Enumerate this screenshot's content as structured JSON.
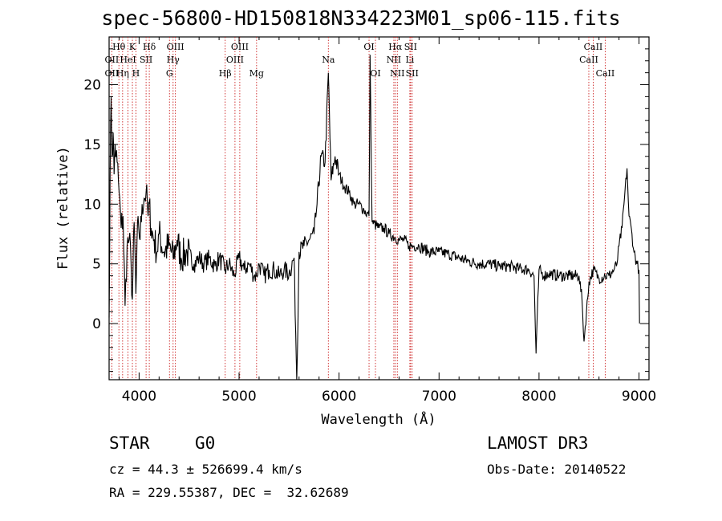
{
  "title": "spec-56800-HD150818N334223M01_sp06-115.fits",
  "info": {
    "class_label": "STAR",
    "subclass_label": "G0",
    "survey": "LAMOST DR3",
    "cz": "cz = 44.3 ± 526699.4 km/s",
    "obs_date": "Obs-Date: 20140522",
    "radec": "RA = 229.55387, DEC =  32.62689"
  },
  "chart_data": {
    "type": "line",
    "title": "spec-56800-HD150818N334223M01_sp06-115.fits",
    "xlabel": "Wavelength (Å)",
    "ylabel": "Flux (relative)",
    "xlim": [
      3700,
      9100
    ],
    "ylim": [
      -4.7,
      24
    ],
    "xticks": [
      4000,
      5000,
      6000,
      7000,
      8000,
      9000
    ],
    "yticks": [
      0,
      5,
      10,
      15,
      20
    ],
    "grid": false,
    "line_color": "#000000",
    "marker_color": "#cc2222",
    "spectrum": {
      "x": [
        3700,
        3710,
        3720,
        3730,
        3740,
        3750,
        3760,
        3770,
        3780,
        3800,
        3820,
        3840,
        3860,
        3880,
        3900,
        3920,
        3933,
        3950,
        3968,
        3990,
        4010,
        4030,
        4050,
        4070,
        4090,
        4102,
        4120,
        4150,
        4180,
        4200,
        4250,
        4300,
        4340,
        4380,
        4420,
        4480,
        4550,
        4600,
        4650,
        4700,
        4760,
        4800,
        4861,
        4900,
        4950,
        5000,
        5050,
        5100,
        5150,
        5175,
        5200,
        5250,
        5300,
        5350,
        5400,
        5450,
        5500,
        5550,
        5577,
        5600,
        5650,
        5700,
        5750,
        5780,
        5820,
        5860,
        5893,
        5920,
        5960,
        6000,
        6050,
        6100,
        6150,
        6200,
        6250,
        6300,
        6310,
        6330,
        6400,
        6450,
        6500,
        6563,
        6600,
        6650,
        6700,
        6750,
        6800,
        6900,
        7000,
        7100,
        7200,
        7300,
        7400,
        7500,
        7600,
        7700,
        7800,
        7900,
        7950,
        7970,
        8000,
        8050,
        8100,
        8200,
        8300,
        8400,
        8430,
        8450,
        8500,
        8542,
        8600,
        8662,
        8700,
        8750,
        8780,
        8800,
        8830,
        8850,
        8880,
        8900,
        8930,
        8950,
        8980,
        9000,
        9005
      ],
      "y": [
        0.5,
        12.0,
        19.0,
        14.0,
        16.0,
        12.5,
        15.0,
        14.0,
        13.5,
        11.0,
        8.0,
        9.0,
        1.5,
        6.5,
        7.0,
        5.0,
        2.0,
        8.5,
        2.5,
        9.0,
        7.0,
        10.0,
        10.5,
        11.0,
        9.0,
        10.0,
        8.0,
        7.0,
        6.0,
        7.5,
        6.0,
        6.5,
        5.5,
        7.0,
        5.5,
        6.0,
        5.0,
        5.5,
        5.0,
        5.5,
        4.8,
        5.5,
        4.5,
        5.0,
        4.0,
        5.5,
        4.5,
        5.0,
        4.0,
        4.0,
        5.0,
        4.0,
        4.5,
        4.5,
        4.0,
        4.5,
        4.2,
        5.5,
        -4.7,
        6.0,
        6.5,
        7.0,
        7.5,
        10.0,
        14.0,
        13.5,
        21.0,
        12.0,
        14.0,
        12.5,
        11.5,
        11.0,
        10.0,
        10.0,
        9.5,
        9.0,
        22.5,
        8.5,
        8.0,
        8.0,
        7.5,
        7.2,
        7.0,
        7.0,
        6.5,
        6.5,
        6.5,
        6.0,
        6.0,
        5.8,
        5.5,
        5.2,
        5.0,
        5.0,
        4.8,
        4.8,
        4.6,
        4.5,
        4.0,
        -2.5,
        4.5,
        4.0,
        4.2,
        4.0,
        4.0,
        4.0,
        2.0,
        -1.5,
        3.5,
        4.5,
        3.8,
        4.0,
        4.0,
        4.5,
        5.0,
        6.5,
        8.0,
        10.0,
        13.0,
        9.0,
        7.5,
        6.0,
        5.0,
        4.5,
        0.0
      ]
    },
    "line_markers": [
      {
        "label": "Hθ",
        "wave": 3798,
        "row": 1
      },
      {
        "label": "OII",
        "wave": 3727,
        "row": 2
      },
      {
        "label": "OII",
        "wave": 3727,
        "row": 3
      },
      {
        "label": "Hη",
        "wave": 3835,
        "row": 3
      },
      {
        "label": "K",
        "wave": 3933,
        "row": 1
      },
      {
        "label": "HeI",
        "wave": 3889,
        "row": 2
      },
      {
        "label": "SII",
        "wave": 4070,
        "row": 2
      },
      {
        "label": "H",
        "wave": 3968,
        "row": 3
      },
      {
        "label": "Hδ",
        "wave": 4102,
        "row": 1
      },
      {
        "label": "OIII",
        "wave": 4363,
        "row": 1
      },
      {
        "label": "Hγ",
        "wave": 4340,
        "row": 2
      },
      {
        "label": "G",
        "wave": 4304,
        "row": 3
      },
      {
        "label": "Hβ",
        "wave": 4861,
        "row": 3
      },
      {
        "label": "OIII",
        "wave": 5007,
        "row": 1
      },
      {
        "label": "OIII",
        "wave": 4959,
        "row": 2
      },
      {
        "label": "Mg",
        "wave": 5175,
        "row": 3
      },
      {
        "label": "Na",
        "wave": 5893,
        "row": 2
      },
      {
        "label": "OI",
        "wave": 6300,
        "row": 1
      },
      {
        "label": "OI",
        "wave": 6364,
        "row": 3
      },
      {
        "label": "Hα",
        "wave": 6563,
        "row": 1
      },
      {
        "label": "SII",
        "wave": 6716,
        "row": 1
      },
      {
        "label": "NII",
        "wave": 6548,
        "row": 2
      },
      {
        "label": "Li",
        "wave": 6708,
        "row": 2
      },
      {
        "label": "NII",
        "wave": 6583,
        "row": 3
      },
      {
        "label": "SII",
        "wave": 6731,
        "row": 3
      },
      {
        "label": "CaII",
        "wave": 8542,
        "row": 1
      },
      {
        "label": "CaII",
        "wave": 8498,
        "row": 2
      },
      {
        "label": "CaII",
        "wave": 8662,
        "row": 3
      }
    ]
  }
}
